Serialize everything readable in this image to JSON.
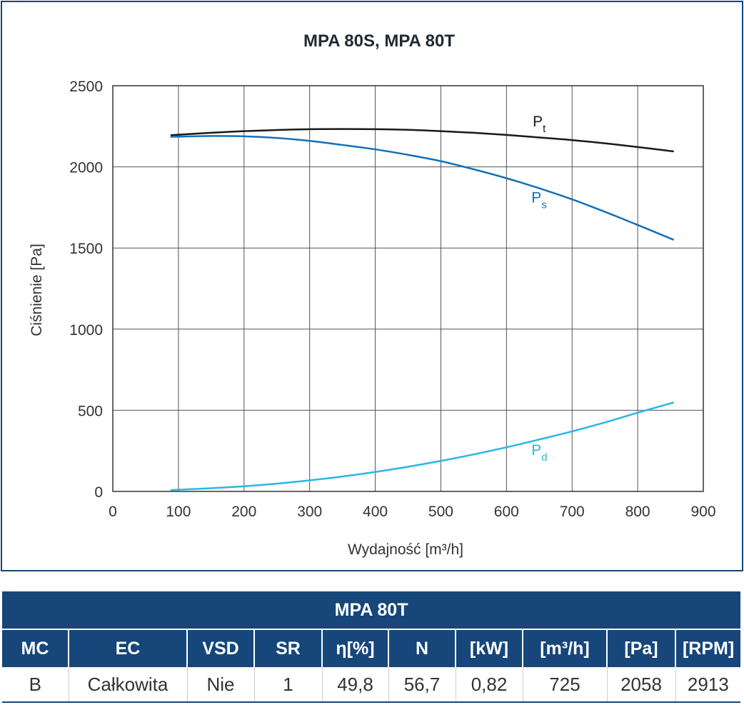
{
  "chart_data": {
    "type": "line",
    "title": "MPA 80S, MPA 80T",
    "xlabel": "Wydajność [m³/h]",
    "ylabel": "Ciśnienie [Pa]",
    "xlim": [
      0,
      900
    ],
    "ylim": [
      0,
      2500
    ],
    "xticks": [
      0,
      100,
      200,
      300,
      400,
      500,
      600,
      700,
      800,
      900
    ],
    "yticks": [
      0,
      500,
      1000,
      1500,
      2000,
      2500
    ],
    "grid": true,
    "legend": "curve labels",
    "series": [
      {
        "name": "Pt",
        "label_main": "P",
        "label_sub": "t",
        "color": "#1a1a1a",
        "label_at": [
          640,
          2250
        ],
        "x": [
          88,
          150,
          200,
          250,
          300,
          350,
          400,
          450,
          500,
          550,
          600,
          650,
          700,
          750,
          800,
          855
        ],
        "y": [
          2195,
          2210,
          2220,
          2227,
          2232,
          2233,
          2232,
          2228,
          2220,
          2210,
          2197,
          2181,
          2165,
          2145,
          2122,
          2095
        ]
      },
      {
        "name": "Ps",
        "label_main": "P",
        "label_sub": "s",
        "color": "#1570b7",
        "label_at": [
          638,
          1780
        ],
        "x": [
          88,
          150,
          200,
          250,
          300,
          350,
          400,
          450,
          500,
          550,
          600,
          650,
          700,
          750,
          800,
          855
        ],
        "y": [
          2185,
          2190,
          2188,
          2178,
          2160,
          2135,
          2108,
          2074,
          2035,
          1985,
          1930,
          1868,
          1800,
          1723,
          1642,
          1550
        ]
      },
      {
        "name": "Pd",
        "label_main": "P",
        "label_sub": "d",
        "color": "#29b7e6",
        "label_at": [
          638,
          225
        ],
        "x": [
          88,
          150,
          200,
          250,
          300,
          350,
          400,
          450,
          500,
          550,
          600,
          650,
          700,
          750,
          800,
          855
        ],
        "y": [
          8,
          20,
          32,
          48,
          68,
          92,
          120,
          152,
          188,
          228,
          272,
          320,
          370,
          425,
          485,
          548
        ]
      }
    ]
  },
  "table": {
    "title": "MPA 80T",
    "headers": [
      "MC",
      "EC",
      "VSD",
      "SR",
      "η[%]",
      "N",
      "[kW]",
      "[m³/h]",
      "[Pa]",
      "[RPM]"
    ],
    "row": [
      "B",
      "Całkowita",
      "Nie",
      "1",
      "49,8",
      "56,7",
      "0,82",
      "725",
      "2058",
      "2913"
    ]
  },
  "colors": {
    "frame": "#16467a",
    "grid": "#555555"
  }
}
